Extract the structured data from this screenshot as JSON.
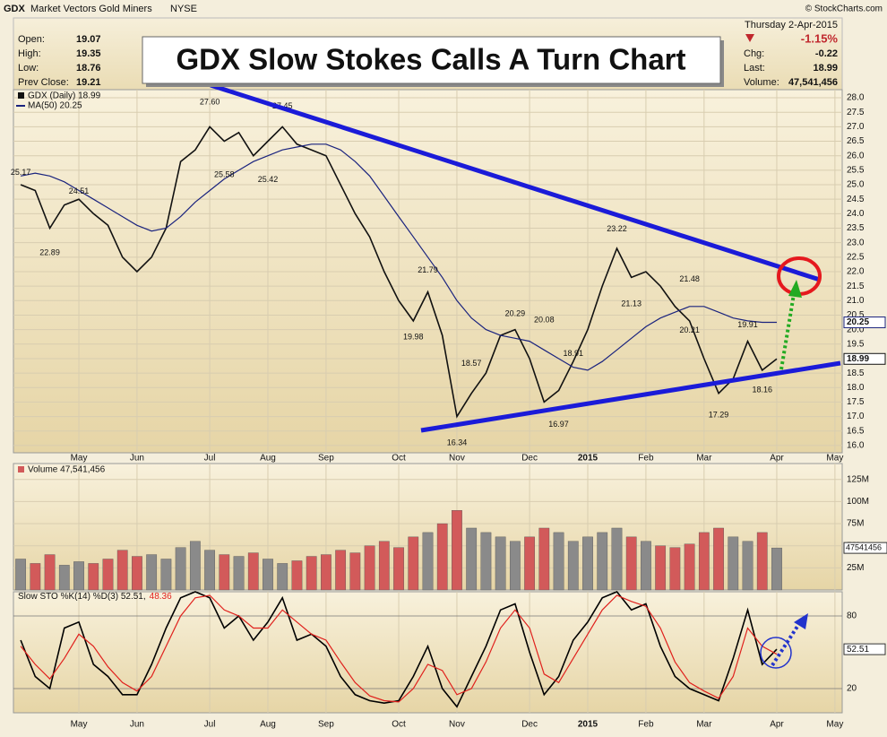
{
  "title": "GDX Slow Stokes Calls A Turn Chart",
  "header": {
    "symbol": "GDX",
    "name": "Market Vectors Gold Miners",
    "exchange": "NYSE",
    "copyright": "© StockCharts.com",
    "quote": [
      {
        "label": "Open:",
        "value": "19.07"
      },
      {
        "label": "High:",
        "value": "19.35"
      },
      {
        "label": "Low:",
        "value": "18.76"
      },
      {
        "label": "Prev Close:",
        "value": "19.21"
      }
    ],
    "date": "Thursday  2-Apr-2015",
    "change_pct": "-1.15%",
    "stats": [
      {
        "label": "Chg:",
        "value": "-0.22"
      },
      {
        "label": "Last:",
        "value": "18.99"
      },
      {
        "label": "Volume:",
        "value": "47,541,456"
      }
    ]
  },
  "chart_data": [
    {
      "type": "line",
      "categories": [
        null,
        null,
        null,
        null,
        "May",
        null,
        null,
        null,
        "Jun",
        null,
        null,
        null,
        null,
        "Jul",
        null,
        null,
        null,
        "Aug",
        null,
        null,
        null,
        "Sep",
        null,
        null,
        null,
        null,
        "Oct",
        null,
        null,
        null,
        "Nov",
        null,
        null,
        null,
        null,
        "Dec",
        null,
        null,
        null,
        "2015",
        null,
        null,
        null,
        "Feb",
        null,
        null,
        null,
        "Mar",
        null,
        null,
        null,
        null,
        "Apr",
        null,
        null,
        null,
        "May"
      ],
      "series": [
        {
          "name": "GDX (Daily) 18.99",
          "color": "#111111",
          "values": [
            25.0,
            24.8,
            23.5,
            24.3,
            24.5,
            24.0,
            23.6,
            22.5,
            22.0,
            22.5,
            23.5,
            25.8,
            26.2,
            27.0,
            26.5,
            26.8,
            26.0,
            26.5,
            27.0,
            26.4,
            26.2,
            26.0,
            25.0,
            24.0,
            23.2,
            22.0,
            21.0,
            20.3,
            21.3,
            19.8,
            17.0,
            17.8,
            18.5,
            19.8,
            20.0,
            19.0,
            17.5,
            17.9,
            18.9,
            20.0,
            21.5,
            22.8,
            21.8,
            22.0,
            21.5,
            20.8,
            20.3,
            19.0,
            17.8,
            18.3,
            19.6,
            18.6,
            18.99,
            null,
            null,
            null,
            null
          ]
        },
        {
          "name": "MA(50) 20.25",
          "color": "#1a237e",
          "values": [
            25.3,
            25.4,
            25.3,
            25.1,
            24.8,
            24.5,
            24.2,
            23.9,
            23.6,
            23.4,
            23.5,
            23.9,
            24.4,
            24.8,
            25.2,
            25.5,
            25.8,
            26.0,
            26.2,
            26.3,
            26.4,
            26.4,
            26.2,
            25.8,
            25.3,
            24.6,
            23.9,
            23.2,
            22.5,
            21.8,
            21.0,
            20.4,
            20.0,
            19.8,
            19.7,
            19.6,
            19.3,
            19.0,
            18.7,
            18.6,
            18.9,
            19.3,
            19.7,
            20.1,
            20.4,
            20.6,
            20.8,
            20.8,
            20.6,
            20.4,
            20.3,
            20.25,
            20.25,
            null,
            null,
            null,
            null
          ]
        }
      ],
      "ylim": [
        15.75,
        28.28
      ],
      "yticks": [
        {
          "value": 16,
          "label": "16.0"
        },
        16.5,
        {
          "value": 17,
          "label": "17.0"
        },
        17.5,
        {
          "value": 18,
          "label": "18.0"
        },
        18.5,
        {
          "value": 19,
          "label": "19.0"
        },
        19.5,
        {
          "value": 20,
          "label": "20.0"
        },
        20.5,
        {
          "value": 21,
          "label": "21.0"
        },
        21.5,
        {
          "value": 22,
          "label": "22.0"
        },
        22.5,
        {
          "value": 23,
          "label": "23.0"
        },
        23.5,
        {
          "value": 24,
          "label": "24.0"
        },
        24.5,
        {
          "value": 25,
          "label": "25.0"
        },
        25.5,
        {
          "value": 26,
          "label": "26.0"
        },
        26.5,
        {
          "value": 27,
          "label": "27.0"
        },
        27.5,
        {
          "value": 28,
          "label": "28.0"
        }
      ],
      "grid": true,
      "annotations": [
        {
          "index": 0,
          "value": 25.17,
          "label": "25.17"
        },
        {
          "index": 4,
          "value": 24.51,
          "label": "24.51"
        },
        {
          "index": 2,
          "value": 22.89,
          "label": "22.89"
        },
        {
          "index": 13,
          "value": 27.6,
          "label": "27.60"
        },
        {
          "index": 14,
          "value": 25.58,
          "label": "25.58"
        },
        {
          "index": 18,
          "value": 27.45,
          "label": "27.45"
        },
        {
          "index": 17,
          "value": 25.42,
          "label": "25.42"
        },
        {
          "index": 28,
          "value": 21.79,
          "label": "21.79"
        },
        {
          "index": 27,
          "value": 19.98,
          "label": "19.98"
        },
        {
          "index": 31,
          "value": 18.57,
          "label": "18.57"
        },
        {
          "index": 30,
          "value": 16.34,
          "label": "16.34"
        },
        {
          "index": 34,
          "value": 20.29,
          "label": "20.29"
        },
        {
          "index": 36,
          "value": 20.08,
          "label": "20.08"
        },
        {
          "index": 38,
          "value": 18.91,
          "label": "18.91"
        },
        {
          "index": 37,
          "value": 16.97,
          "label": "16.97"
        },
        {
          "index": 41,
          "value": 23.22,
          "label": "23.22"
        },
        {
          "index": 42,
          "value": 21.13,
          "label": "21.13"
        },
        {
          "index": 46,
          "value": 21.48,
          "label": "21.48"
        },
        {
          "index": 46,
          "value": 20.21,
          "label": "20.21"
        },
        {
          "index": 50,
          "value": 19.91,
          "label": "19.91"
        },
        {
          "index": 48,
          "value": 17.29,
          "label": "17.29"
        },
        {
          "index": 51,
          "value": 18.16,
          "label": "18.16"
        }
      ]
    },
    {
      "type": "bar",
      "title": "Volume 47,541,456",
      "up_color": "#8a8a8a",
      "down_color": "#d25a5a",
      "values": [
        35000000,
        30000000,
        40000000,
        28000000,
        32000000,
        30000000,
        35000000,
        45000000,
        38000000,
        40000000,
        35000000,
        48000000,
        55000000,
        45000000,
        40000000,
        38000000,
        42000000,
        35000000,
        30000000,
        33000000,
        38000000,
        40000000,
        45000000,
        42000000,
        50000000,
        55000000,
        48000000,
        60000000,
        65000000,
        75000000,
        90000000,
        70000000,
        65000000,
        60000000,
        55000000,
        60000000,
        70000000,
        65000000,
        55000000,
        60000000,
        65000000,
        70000000,
        60000000,
        55000000,
        50000000,
        48000000,
        52000000,
        65000000,
        70000000,
        60000000,
        55000000,
        65000000,
        47541456,
        null,
        null,
        null,
        null
      ],
      "ylim": [
        0,
        143000000
      ],
      "yticks": [
        {
          "value": 25000000,
          "label": "25M"
        },
        {
          "value": 50000000,
          "label": "50M"
        },
        {
          "value": 75000000,
          "label": "75M"
        },
        {
          "value": 100000000,
          "label": "100M"
        },
        {
          "value": 125000000,
          "label": "125M"
        }
      ]
    },
    {
      "type": "line",
      "title": "Slow STO %K(14) %D(3) 52.51,",
      "categories": [
        null,
        null,
        null,
        null,
        "May",
        null,
        null,
        null,
        "Jun",
        null,
        null,
        null,
        null,
        "Jul",
        null,
        null,
        null,
        "Aug",
        null,
        null,
        null,
        "Sep",
        null,
        null,
        null,
        null,
        "Oct",
        null,
        null,
        null,
        "Nov",
        null,
        null,
        null,
        null,
        "Dec",
        null,
        null,
        null,
        "2015",
        null,
        null,
        null,
        "Feb",
        null,
        null,
        null,
        "Mar",
        null,
        null,
        null,
        null,
        "Apr",
        null,
        null,
        null,
        "May"
      ],
      "series": [
        {
          "color": "#000000",
          "values": [
            60,
            30,
            20,
            70,
            75,
            40,
            30,
            15,
            15,
            40,
            70,
            95,
            100,
            95,
            70,
            80,
            60,
            75,
            95,
            60,
            65,
            55,
            30,
            15,
            10,
            8,
            10,
            30,
            55,
            20,
            5,
            30,
            55,
            85,
            90,
            50,
            15,
            30,
            60,
            75,
            95,
            100,
            85,
            90,
            55,
            30,
            20,
            15,
            10,
            45,
            85,
            40,
            52.51,
            null,
            null,
            null,
            null
          ]
        },
        {
          "color": "#e0201c",
          "values": [
            55,
            40,
            28,
            45,
            65,
            55,
            38,
            25,
            18,
            30,
            55,
            80,
            95,
            97,
            85,
            80,
            70,
            70,
            85,
            75,
            65,
            60,
            42,
            25,
            14,
            10,
            9,
            20,
            40,
            35,
            15,
            20,
            42,
            70,
            85,
            70,
            32,
            25,
            45,
            65,
            85,
            97,
            92,
            88,
            70,
            42,
            25,
            18,
            12,
            30,
            70,
            55,
            48.36,
            null,
            null,
            null,
            null
          ]
        }
      ],
      "ylim": [
        0,
        100
      ],
      "yticks": [
        20,
        80
      ],
      "grid": true
    }
  ]
}
